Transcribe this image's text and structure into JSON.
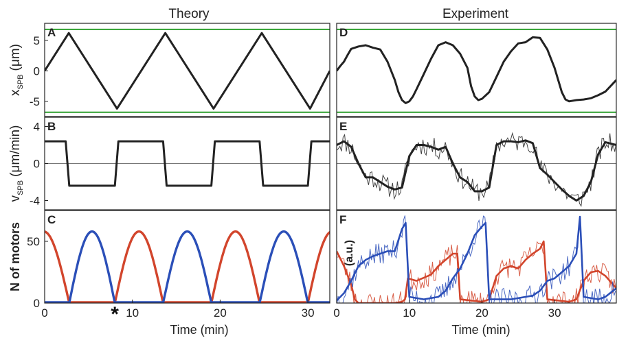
{
  "figure": {
    "column_titles": [
      "Theory",
      "Experiment"
    ],
    "xlabel": "Time (min)"
  },
  "colors": {
    "black_trace": "#222222",
    "green_line": "#2ea02e",
    "red_trace": "#d2452c",
    "blue_trace": "#2b4fb8",
    "zero_line": "#777777",
    "frame": "#222222"
  },
  "chart_data": [
    {
      "panel": "A",
      "column": "Theory",
      "type": "line",
      "ylabel": "x",
      "ylabel_sub": "SPB",
      "yunit": "(μm)",
      "ylim": [
        -7.5,
        7.8
      ],
      "yticks": [
        -5,
        0,
        5
      ],
      "ytick_labels": [
        "-5",
        "0",
        "5"
      ],
      "xlim": [
        0,
        32.5
      ],
      "hlines": [
        6.8,
        -6.8
      ],
      "series": [
        {
          "color_key": "black_trace",
          "x": [
            0,
            2.75,
            8.25,
            13.75,
            19.25,
            24.75,
            30.25,
            32.5
          ],
          "y": [
            0,
            6.2,
            -6.2,
            6.2,
            -6.2,
            6.2,
            -6.2,
            0
          ]
        }
      ]
    },
    {
      "panel": "B",
      "column": "Theory",
      "type": "line",
      "ylabel": "v",
      "ylabel_sub": "SPB",
      "yunit": "(μm/min)",
      "ylim": [
        -5,
        5
      ],
      "yticks": [
        -4,
        0,
        4
      ],
      "ytick_labels": [
        "-4",
        "0",
        "4"
      ],
      "xlim": [
        0,
        32.5
      ],
      "zero_line": true,
      "series": [
        {
          "color_key": "black_trace",
          "x": [
            0,
            2.4,
            2.8,
            8.0,
            8.4,
            13.5,
            13.9,
            19.0,
            19.4,
            24.5,
            24.9,
            30.0,
            30.4,
            32.5
          ],
          "y": [
            2.4,
            2.4,
            -2.4,
            -2.4,
            2.4,
            2.4,
            -2.4,
            -2.4,
            2.4,
            2.4,
            -2.4,
            -2.4,
            2.4,
            2.4
          ]
        }
      ]
    },
    {
      "panel": "C",
      "column": "Theory",
      "type": "line",
      "ylabel": "N of motors",
      "ylabel_sub": "",
      "yunit": "",
      "ylim": [
        0,
        75
      ],
      "yticks": [
        0,
        50
      ],
      "ytick_labels": [
        "0",
        "50"
      ],
      "xlim": [
        0,
        32.5
      ],
      "xticks": [
        0,
        10,
        20,
        30
      ],
      "xtick_labels": [
        "0",
        "10",
        "20",
        "30"
      ],
      "marker": {
        "x": 8,
        "label": "*"
      },
      "series": [
        {
          "color_key": "red_trace",
          "type": "arches",
          "arches": [
            [
              -3.0,
              2.8
            ],
            [
              8.0,
              13.5
            ],
            [
              19.0,
              24.5
            ],
            [
              30.0,
              35.5
            ]
          ],
          "peak": 58
        },
        {
          "color_key": "red_trace",
          "type": "baseline",
          "segments": [
            [
              2.8,
              8.0
            ],
            [
              13.5,
              19.0
            ],
            [
              24.5,
              30.0
            ]
          ]
        },
        {
          "color_key": "blue_trace",
          "type": "arches",
          "arches": [
            [
              2.8,
              8.0
            ],
            [
              13.5,
              19.0
            ],
            [
              24.5,
              30.0
            ]
          ],
          "peak": 58
        },
        {
          "color_key": "blue_trace",
          "type": "baseline",
          "segments": [
            [
              0,
              2.8
            ],
            [
              8.0,
              13.5
            ],
            [
              19.0,
              24.5
            ],
            [
              30.0,
              32.5
            ]
          ]
        }
      ]
    },
    {
      "panel": "D",
      "column": "Experiment",
      "type": "line",
      "xlim": [
        0,
        38.5
      ],
      "ylim": [
        -7.5,
        7.8
      ],
      "hlines": [
        6.8,
        -6.8
      ],
      "series": [
        {
          "color_key": "black_trace",
          "x": [
            0,
            0.5,
            1,
            1.5,
            2,
            3,
            4,
            5,
            6,
            7,
            8,
            8.5,
            9,
            9.5,
            10,
            10.5,
            11,
            12,
            13,
            14,
            15,
            16,
            17,
            18,
            18.5,
            19,
            19.5,
            20,
            21,
            22,
            23,
            24,
            25,
            26,
            27,
            28,
            29,
            30,
            30.5,
            31,
            31.5,
            32,
            33,
            34,
            35,
            36,
            37,
            38.5
          ],
          "y": [
            0,
            0.8,
            1.5,
            2.6,
            3.6,
            4.0,
            4.2,
            3.8,
            3.5,
            1.5,
            -1.5,
            -3.5,
            -4.8,
            -5.3,
            -5.0,
            -4.2,
            -3.0,
            -0.5,
            2.0,
            4.2,
            4.7,
            4.2,
            2.8,
            0.5,
            -2.5,
            -4.2,
            -4.8,
            -4.6,
            -3.5,
            -1.0,
            1.5,
            3.2,
            4.5,
            4.7,
            5.5,
            5.4,
            3.5,
            0.5,
            -1.5,
            -3.5,
            -4.7,
            -5.0,
            -4.8,
            -4.7,
            -4.5,
            -4.0,
            -3.4,
            -1.5
          ]
        }
      ]
    },
    {
      "panel": "E",
      "column": "Experiment",
      "type": "line",
      "xlim": [
        0,
        38.5
      ],
      "ylim": [
        -5,
        5
      ],
      "zero_line": true,
      "series": [
        {
          "color_key": "black_trace",
          "role": "smooth",
          "x": [
            0,
            1,
            2,
            3,
            4,
            5,
            6,
            7,
            8,
            9,
            10,
            11,
            12,
            13,
            14,
            15,
            16,
            17,
            18,
            19,
            20,
            21,
            22,
            23,
            24,
            25,
            26,
            27,
            28,
            29,
            30,
            31,
            32,
            33,
            34,
            35,
            36,
            37,
            38.5
          ],
          "y": [
            2.0,
            2.4,
            1.8,
            0.0,
            -1.5,
            -1.5,
            -2.0,
            -2.5,
            -2.8,
            -2.6,
            0.8,
            2.0,
            2.0,
            1.8,
            1.5,
            1.8,
            0.0,
            -1.5,
            -2.0,
            -3.0,
            -3.0,
            -2.6,
            2.0,
            2.4,
            2.4,
            2.3,
            2.5,
            2.2,
            -0.5,
            -1.2,
            -2.0,
            -2.8,
            -3.5,
            -4.0,
            -3.5,
            -2.0,
            1.0,
            2.3,
            2.0
          ]
        },
        {
          "color_key": "black_trace",
          "role": "raw",
          "jitter": 1.1,
          "step": 0.22,
          "seed": 11
        }
      ]
    },
    {
      "panel": "F",
      "column": "Experiment",
      "type": "line",
      "ylabel": "(a.u.)",
      "xlim": [
        0,
        38.5
      ],
      "ylim": [
        0,
        75
      ],
      "xticks": [
        0,
        10,
        20,
        30
      ],
      "xtick_labels": [
        "0",
        "10",
        "20",
        "30"
      ],
      "series": [
        {
          "color_key": "red_trace",
          "x": [
            0,
            1,
            2,
            2.5,
            3,
            8,
            9,
            9.4,
            9.8,
            11,
            13,
            14,
            15,
            16,
            16.6,
            17,
            20,
            21,
            22,
            23,
            24,
            25,
            26,
            27,
            28,
            28.5,
            29,
            32,
            33,
            34,
            35,
            36,
            37,
            38.5
          ],
          "y": [
            42,
            30,
            15,
            3,
            0,
            0,
            1,
            3,
            20,
            18,
            23,
            30,
            35,
            40,
            40,
            3,
            1,
            3,
            22,
            28,
            30,
            28,
            35,
            40,
            44,
            50,
            3,
            1,
            3,
            18,
            25,
            26,
            22,
            12
          ]
        },
        {
          "color_key": "red_trace",
          "role": "raw",
          "jitter": 9,
          "step": 0.2,
          "seed": 23,
          "ref": 0
        },
        {
          "color_key": "blue_trace",
          "x": [
            0,
            1,
            2,
            3,
            4,
            5,
            6,
            7,
            8,
            9,
            9.5,
            10,
            12,
            14,
            15,
            16,
            17,
            18,
            19,
            20,
            20.5,
            21,
            22,
            24,
            26,
            27,
            28,
            29,
            30,
            31,
            32,
            33,
            33.5,
            34,
            36,
            37,
            38.5
          ],
          "y": [
            2,
            8,
            18,
            30,
            35,
            38,
            40,
            42,
            42,
            60,
            65,
            5,
            3,
            5,
            10,
            20,
            28,
            40,
            55,
            62,
            65,
            3,
            3,
            3,
            5,
            6,
            10,
            18,
            20,
            25,
            30,
            40,
            70,
            5,
            3,
            5,
            12
          ]
        },
        {
          "color_key": "blue_trace",
          "role": "raw",
          "jitter": 9,
          "step": 0.2,
          "seed": 37,
          "ref": 2
        }
      ]
    }
  ]
}
